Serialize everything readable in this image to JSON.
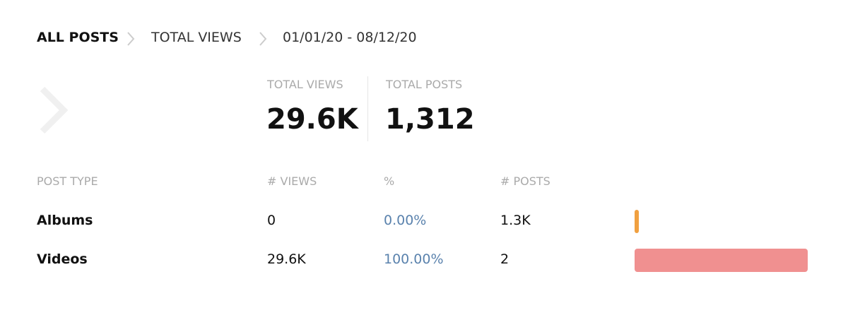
{
  "breadcrumb": [
    "ALL POSTS",
    "TOTAL VIEWS",
    "01/01/20 - 08/12/20"
  ],
  "summary": [
    {
      "label": "TOTAL VIEWS",
      "value": "29.6K"
    },
    {
      "label": "TOTAL POSTS",
      "value": "1,312"
    }
  ],
  "table": {
    "columns": [
      "POST TYPE",
      "# VIEWS",
      "%",
      "# POSTS"
    ],
    "rows": [
      {
        "type": "Albums",
        "views": "0",
        "percent": 0,
        "percent_label": "0.00%",
        "posts": "1.3K",
        "color": "#f0a040"
      },
      {
        "type": "Videos",
        "views": "29.6K",
        "percent": 100,
        "percent_label": "100.00%",
        "posts": "2",
        "color": "#f09090"
      }
    ]
  }
}
